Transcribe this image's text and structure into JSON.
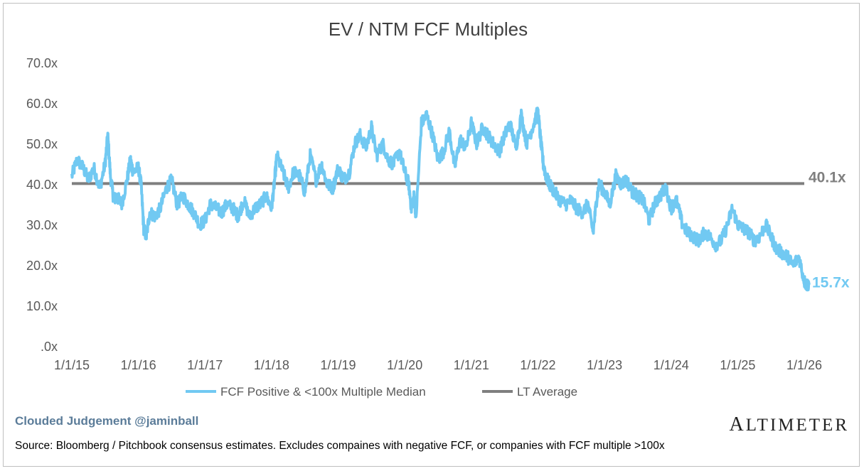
{
  "chart_data": {
    "type": "line",
    "title": "EV / NTM FCF Multiples",
    "xlabel": "",
    "ylabel": "",
    "ylim": [
      0,
      70
    ],
    "yticks": [
      0,
      10,
      20,
      30,
      40,
      50,
      60,
      70
    ],
    "ytick_labels": [
      ".0x",
      "10.0x",
      "20.0x",
      "30.0x",
      "40.0x",
      "50.0x",
      "60.0x",
      "70.0x"
    ],
    "xlim": [
      2015.0,
      2026.0
    ],
    "xticks": [
      2015,
      2016,
      2017,
      2018,
      2019,
      2020,
      2021,
      2022,
      2023,
      2024,
      2025,
      2026
    ],
    "xtick_labels": [
      "1/1/15",
      "1/1/16",
      "1/1/17",
      "1/1/18",
      "1/1/19",
      "1/1/20",
      "1/1/21",
      "1/1/22",
      "1/1/23",
      "1/1/24",
      "1/1/25",
      "1/1/26"
    ],
    "legend_position": "bottom",
    "series": [
      {
        "name": "FCF Positive & <100x Multiple Median",
        "color": "#71c9f2",
        "x": [
          2015.0,
          2015.08,
          2015.17,
          2015.25,
          2015.33,
          2015.42,
          2015.5,
          2015.54,
          2015.58,
          2015.63,
          2015.67,
          2015.75,
          2015.83,
          2015.88,
          2015.92,
          2016.0,
          2016.04,
          2016.08,
          2016.12,
          2016.17,
          2016.25,
          2016.33,
          2016.42,
          2016.5,
          2016.58,
          2016.67,
          2016.75,
          2016.83,
          2016.92,
          2017.0,
          2017.08,
          2017.17,
          2017.25,
          2017.33,
          2017.42,
          2017.5,
          2017.58,
          2017.67,
          2017.75,
          2017.83,
          2017.92,
          2018.0,
          2018.04,
          2018.08,
          2018.17,
          2018.25,
          2018.33,
          2018.42,
          2018.5,
          2018.58,
          2018.67,
          2018.75,
          2018.83,
          2018.92,
          2019.0,
          2019.08,
          2019.17,
          2019.25,
          2019.33,
          2019.42,
          2019.5,
          2019.58,
          2019.67,
          2019.75,
          2019.83,
          2019.92,
          2020.0,
          2020.06,
          2020.1,
          2020.14,
          2020.17,
          2020.25,
          2020.33,
          2020.42,
          2020.5,
          2020.58,
          2020.67,
          2020.75,
          2020.83,
          2020.92,
          2021.0,
          2021.08,
          2021.17,
          2021.25,
          2021.33,
          2021.42,
          2021.5,
          2021.58,
          2021.67,
          2021.75,
          2021.83,
          2021.92,
          2022.0,
          2022.04,
          2022.08,
          2022.12,
          2022.17,
          2022.25,
          2022.33,
          2022.42,
          2022.5,
          2022.58,
          2022.67,
          2022.75,
          2022.83,
          2022.88,
          2022.92,
          2023.0,
          2023.08,
          2023.17,
          2023.25,
          2023.33,
          2023.42,
          2023.5,
          2023.58,
          2023.67,
          2023.75,
          2023.83,
          2023.92,
          2024.0,
          2024.08,
          2024.17,
          2024.25,
          2024.33,
          2024.42,
          2024.5,
          2024.58,
          2024.67,
          2024.75,
          2024.83,
          2024.92,
          2025.0,
          2025.08,
          2025.17,
          2025.25,
          2025.33,
          2025.42,
          2025.5,
          2025.58,
          2025.67,
          2025.75,
          2025.83,
          2025.92,
          2026.0,
          2026.04,
          2026.08
        ],
        "values": [
          42,
          46,
          44,
          41,
          44,
          39,
          45,
          52,
          42,
          36,
          37,
          35,
          41,
          46,
          43,
          44,
          40,
          29,
          27,
          33,
          32,
          34,
          39,
          41,
          35,
          37,
          35,
          33,
          30,
          31,
          35,
          34,
          33,
          35,
          34,
          32,
          36,
          32,
          34,
          35,
          37,
          34,
          40,
          47,
          43,
          39,
          43,
          42,
          38,
          47,
          41,
          45,
          40,
          39,
          44,
          41,
          43,
          50,
          52,
          49,
          54,
          47,
          50,
          46,
          45,
          48,
          43,
          40,
          34,
          37,
          32,
          55,
          57,
          52,
          46,
          48,
          53,
          44,
          51,
          49,
          55,
          50,
          54,
          52,
          50,
          48,
          52,
          55,
          49,
          57,
          50,
          54,
          58,
          51,
          45,
          42,
          40,
          38,
          36,
          35,
          36,
          34,
          33,
          35,
          28,
          36,
          40,
          38,
          35,
          42,
          40,
          41,
          38,
          37,
          36,
          31,
          35,
          37,
          39,
          34,
          36,
          30,
          28,
          27,
          26,
          28,
          27,
          25,
          26,
          29,
          34,
          30,
          29,
          28,
          26,
          27,
          30,
          27,
          24,
          23,
          22,
          20,
          22,
          16,
          15,
          15.7
        ]
      },
      {
        "name": "LT Average",
        "color": "#7f7f7f",
        "x": [
          2015.0,
          2026.0
        ],
        "values": [
          40.1,
          40.1
        ]
      }
    ],
    "annotations": [
      {
        "text": "40.1x",
        "series": "LT Average",
        "color": "#7f7f7f"
      },
      {
        "text": "15.7x",
        "series": "FCF Positive & <100x Multiple Median",
        "color": "#71c9f2"
      }
    ]
  },
  "footer": {
    "brand": "Clouded Judgement @jaminball",
    "logo_first": "A",
    "logo_rest": "LTIMETER",
    "source": "Source: Bloomberg / Pitchbook consensus estimates. Excludes compaines with negative FCF, or companies with FCF multiple >100x"
  }
}
